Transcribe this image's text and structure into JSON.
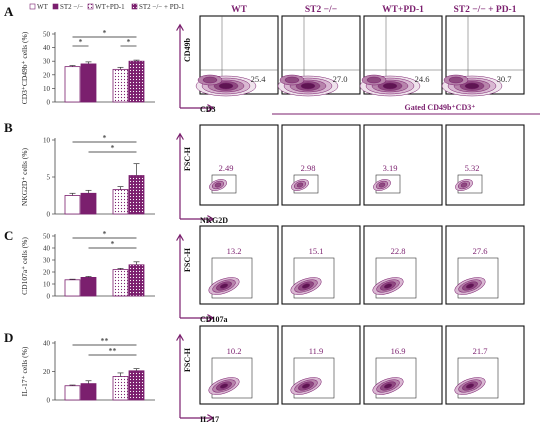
{
  "panel_letters": [
    "A",
    "B",
    "C",
    "D"
  ],
  "legend": [
    {
      "label": "WT",
      "style": "open"
    },
    {
      "label": "ST2 −/−",
      "style": "solid"
    },
    {
      "label": "WT+PD-1",
      "style": "dotted-open"
    },
    {
      "label": "ST2 −/− + PD-1",
      "style": "dotted-solid"
    }
  ],
  "flow_column_headers": [
    "WT",
    "ST2 −/−",
    "WT+PD-1",
    "ST2 −/− + PD-1"
  ],
  "gated_label": "Gated CD49b⁺CD3⁺",
  "colors": {
    "accent": "#7b1f6e",
    "light": "#c9a3c2",
    "axis": "#444444"
  },
  "chart_data": [
    {
      "type": "bar",
      "panel": "A",
      "categories": [
        "WT",
        "ST2 −/−",
        "WT+PD-1",
        "ST2 −/− + PD-1"
      ],
      "values": [
        26.0,
        28.0,
        24.0,
        30.0
      ],
      "errors": [
        0.8,
        1.5,
        1.5,
        0.8
      ],
      "ylabel": "CD3⁺CD49b⁺ cells (%)",
      "ylim": [
        0,
        50
      ],
      "ticks": [
        "0",
        "10",
        "20",
        "30",
        "40",
        "50"
      ],
      "significance": [
        "*",
        "*",
        "*"
      ],
      "flow": {
        "xlabel": "CD3",
        "ylabel": "CD49b",
        "values": [
          "25.4",
          "27.0",
          "24.6",
          "30.7"
        ]
      }
    },
    {
      "type": "bar",
      "panel": "B",
      "categories": [
        "WT",
        "ST2 −/−",
        "WT+PD-1",
        "ST2 −/− + PD-1"
      ],
      "values": [
        2.5,
        2.8,
        3.3,
        5.2
      ],
      "errors": [
        0.3,
        0.4,
        0.4,
        1.6
      ],
      "ylabel": "NKG2D⁺ cells (%)",
      "ylim": [
        0,
        10
      ],
      "ticks": [
        "0",
        "5",
        "10"
      ],
      "significance": [
        "*",
        "*"
      ],
      "flow": {
        "xlabel": "NKG2D",
        "ylabel": "FSC-H",
        "values": [
          "2.49",
          "2.98",
          "3.19",
          "5.32"
        ]
      }
    },
    {
      "type": "bar",
      "panel": "C",
      "categories": [
        "WT",
        "ST2 −/−",
        "WT+PD-1",
        "ST2 −/− + PD-1"
      ],
      "values": [
        13.5,
        15.5,
        22.0,
        26.0
      ],
      "errors": [
        0.5,
        0.8,
        1.0,
        2.5
      ],
      "ylabel": "CD107a⁺ cells (%)",
      "ylim": [
        0,
        50
      ],
      "ticks": [
        "0",
        "10",
        "20",
        "30",
        "40",
        "50"
      ],
      "significance": [
        "*",
        "*"
      ],
      "flow": {
        "xlabel": "CD107a",
        "ylabel": "FSC-H",
        "values": [
          "13.2",
          "15.1",
          "22.8",
          "27.6"
        ]
      }
    },
    {
      "type": "bar",
      "panel": "D",
      "categories": [
        "WT",
        "ST2 −/−",
        "WT+PD-1",
        "ST2 −/− + PD-1"
      ],
      "values": [
        10.0,
        11.5,
        16.5,
        20.5
      ],
      "errors": [
        0.5,
        2.0,
        2.5,
        1.5
      ],
      "ylabel": "IL-17⁺ cells (%)",
      "ylim": [
        0,
        40
      ],
      "ticks": [
        "0",
        "20",
        "40"
      ],
      "significance": [
        "**",
        "**"
      ],
      "flow": {
        "xlabel": "IL-17",
        "ylabel": "FSC-H",
        "values": [
          "10.2",
          "11.9",
          "16.9",
          "21.7"
        ]
      }
    }
  ]
}
